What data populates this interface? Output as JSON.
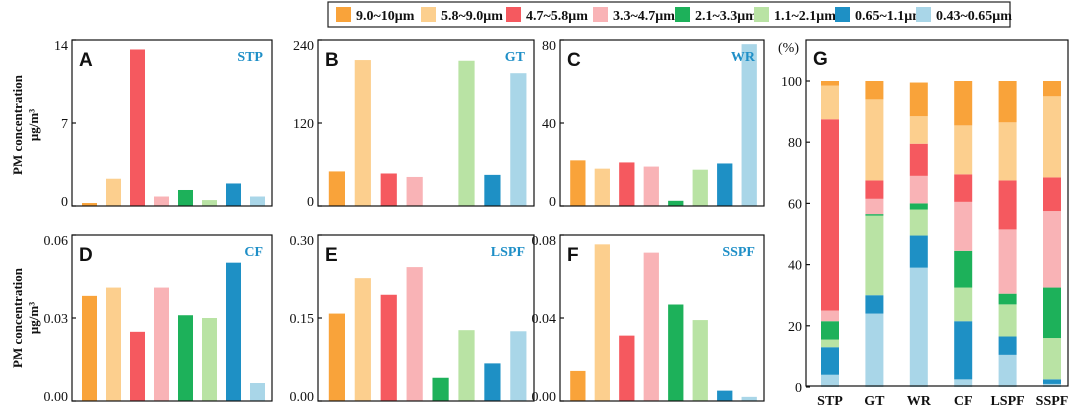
{
  "colors": {
    "bin_0": "#F9A33A",
    "bin_1": "#FCCF8E",
    "bin_2": "#F5595F",
    "bin_3": "#F9B3B6",
    "bin_4": "#1DB15A",
    "bin_5": "#B9E3A4",
    "bin_6": "#1E90C5",
    "bin_7": "#A9D6E8"
  },
  "legend": {
    "entries": [
      "9.0~10μm",
      "5.8~9.0μm",
      "4.7~5.8μm",
      "3.3~4.7μm",
      "2.1~3.3μm",
      "1.1~2.1μm",
      "0.65~1.1μm",
      "0.43~0.65μm"
    ]
  },
  "ylabels": {
    "top_line1": "PM concentration",
    "top_line2": "μg/m³",
    "bottom_line1": "PM concentration",
    "bottom_line2": "μg/m³"
  },
  "chart_data": [
    {
      "type": "bar",
      "panel": "A",
      "title": "STP",
      "unit": "μg/m³",
      "categories": [
        "9.0~10μm",
        "5.8~9.0μm",
        "4.7~5.8μm",
        "3.3~4.7μm",
        "2.1~3.3μm",
        "1.1~2.1μm",
        "0.65~1.1μm",
        "0.43~0.65μm"
      ],
      "values": [
        0.25,
        2.3,
        13.2,
        0.8,
        1.35,
        0.5,
        1.9,
        0.8
      ],
      "ylim": [
        0,
        14
      ],
      "yticks": [
        "0",
        "7",
        "14"
      ]
    },
    {
      "type": "bar",
      "panel": "B",
      "title": "GT",
      "unit": "μg/m³",
      "categories": [
        "9.0~10μm",
        "5.8~9.0μm",
        "4.7~5.8μm",
        "3.3~4.7μm",
        "2.1~3.3μm",
        "1.1~2.1μm",
        "0.65~1.1μm",
        "0.43~0.65μm"
      ],
      "values": [
        50,
        211,
        47,
        42,
        0,
        210,
        45,
        192
      ],
      "ylim": [
        0,
        240
      ],
      "yticks": [
        "0",
        "120",
        "240"
      ]
    },
    {
      "type": "bar",
      "panel": "C",
      "title": "WR",
      "unit": "μg/m³",
      "categories": [
        "9.0~10μm",
        "5.8~9.0μm",
        "4.7~5.8μm",
        "3.3~4.7μm",
        "2.1~3.3μm",
        "1.1~2.1μm",
        "0.65~1.1μm",
        "0.43~0.65μm"
      ],
      "values": [
        22,
        18,
        21,
        19,
        2.5,
        17.5,
        20.5,
        78
      ],
      "ylim": [
        0,
        80
      ],
      "yticks": [
        "0",
        "40",
        "80"
      ]
    },
    {
      "type": "bar",
      "panel": "D",
      "title": "CF",
      "unit": "μg/m³",
      "categories": [
        "9.0~10μm",
        "5.8~9.0μm",
        "4.7~5.8μm",
        "3.3~4.7μm",
        "2.1~3.3μm",
        "1.1~2.1μm",
        "0.65~1.1μm",
        "0.43~0.65μm"
      ],
      "values": [
        0.038,
        0.041,
        0.025,
        0.041,
        0.031,
        0.03,
        0.05,
        0.0065
      ],
      "ylim": [
        0,
        0.06
      ],
      "yticks": [
        "0.00",
        "0.03",
        "0.06"
      ]
    },
    {
      "type": "bar",
      "panel": "E",
      "title": "LSPF",
      "unit": "μg/m³",
      "categories": [
        "9.0~10μm",
        "5.8~9.0μm",
        "4.7~5.8μm",
        "3.3~4.7μm",
        "2.1~3.3μm",
        "1.1~2.1μm",
        "0.65~1.1μm",
        "0.43~0.65μm"
      ],
      "values": [
        0.158,
        0.222,
        0.192,
        0.242,
        0.042,
        0.128,
        0.068,
        0.126
      ],
      "ylim": [
        0,
        0.3
      ],
      "yticks": [
        "0.00",
        "0.15",
        "0.30"
      ]
    },
    {
      "type": "bar",
      "panel": "F",
      "title": "SSPF",
      "unit": "μg/m³",
      "categories": [
        "9.0~10μm",
        "5.8~9.0μm",
        "4.7~5.8μm",
        "3.3~4.7μm",
        "2.1~3.3μm",
        "1.1~2.1μm",
        "0.65~1.1μm",
        "0.43~0.65μm"
      ],
      "values": [
        0.0145,
        0.0755,
        0.0315,
        0.0715,
        0.0465,
        0.039,
        0.005,
        0.002
      ],
      "ylim": [
        0,
        0.08
      ],
      "yticks": [
        "0.00",
        "0.04",
        "0.08"
      ]
    },
    {
      "type": "bar",
      "stacked": true,
      "panel": "G",
      "ylabel": "(%)",
      "categories": [
        "STP",
        "GT",
        "WR",
        "CF",
        "LSPF",
        "SSPF"
      ],
      "ylim": [
        0,
        100
      ],
      "yticks": [
        "0",
        "20",
        "40",
        "60",
        "80",
        "100"
      ],
      "series": [
        {
          "name": "0.43~0.65μm",
          "values": [
            4,
            24,
            39,
            2.5,
            10.5,
            1
          ]
        },
        {
          "name": "0.65~1.1μm",
          "values": [
            9,
            6,
            10.5,
            19,
            6,
            1.5
          ]
        },
        {
          "name": "1.1~2.1μm",
          "values": [
            2.5,
            26,
            8.5,
            11,
            10.5,
            13.5
          ]
        },
        {
          "name": "2.1~3.3μm",
          "values": [
            6,
            0.5,
            2,
            12,
            3.5,
            16.5
          ]
        },
        {
          "name": "3.3~4.7μm",
          "values": [
            3.5,
            5,
            9,
            16,
            21,
            25
          ]
        },
        {
          "name": "4.7~5.8μm",
          "values": [
            62.5,
            6,
            10.5,
            9,
            16,
            11
          ]
        },
        {
          "name": "5.8~9.0μm",
          "values": [
            11,
            26.5,
            9,
            16,
            19,
            26.5
          ]
        },
        {
          "name": "9.0~10μm",
          "values": [
            1.5,
            6,
            11,
            14.5,
            13.5,
            5
          ]
        }
      ]
    }
  ]
}
